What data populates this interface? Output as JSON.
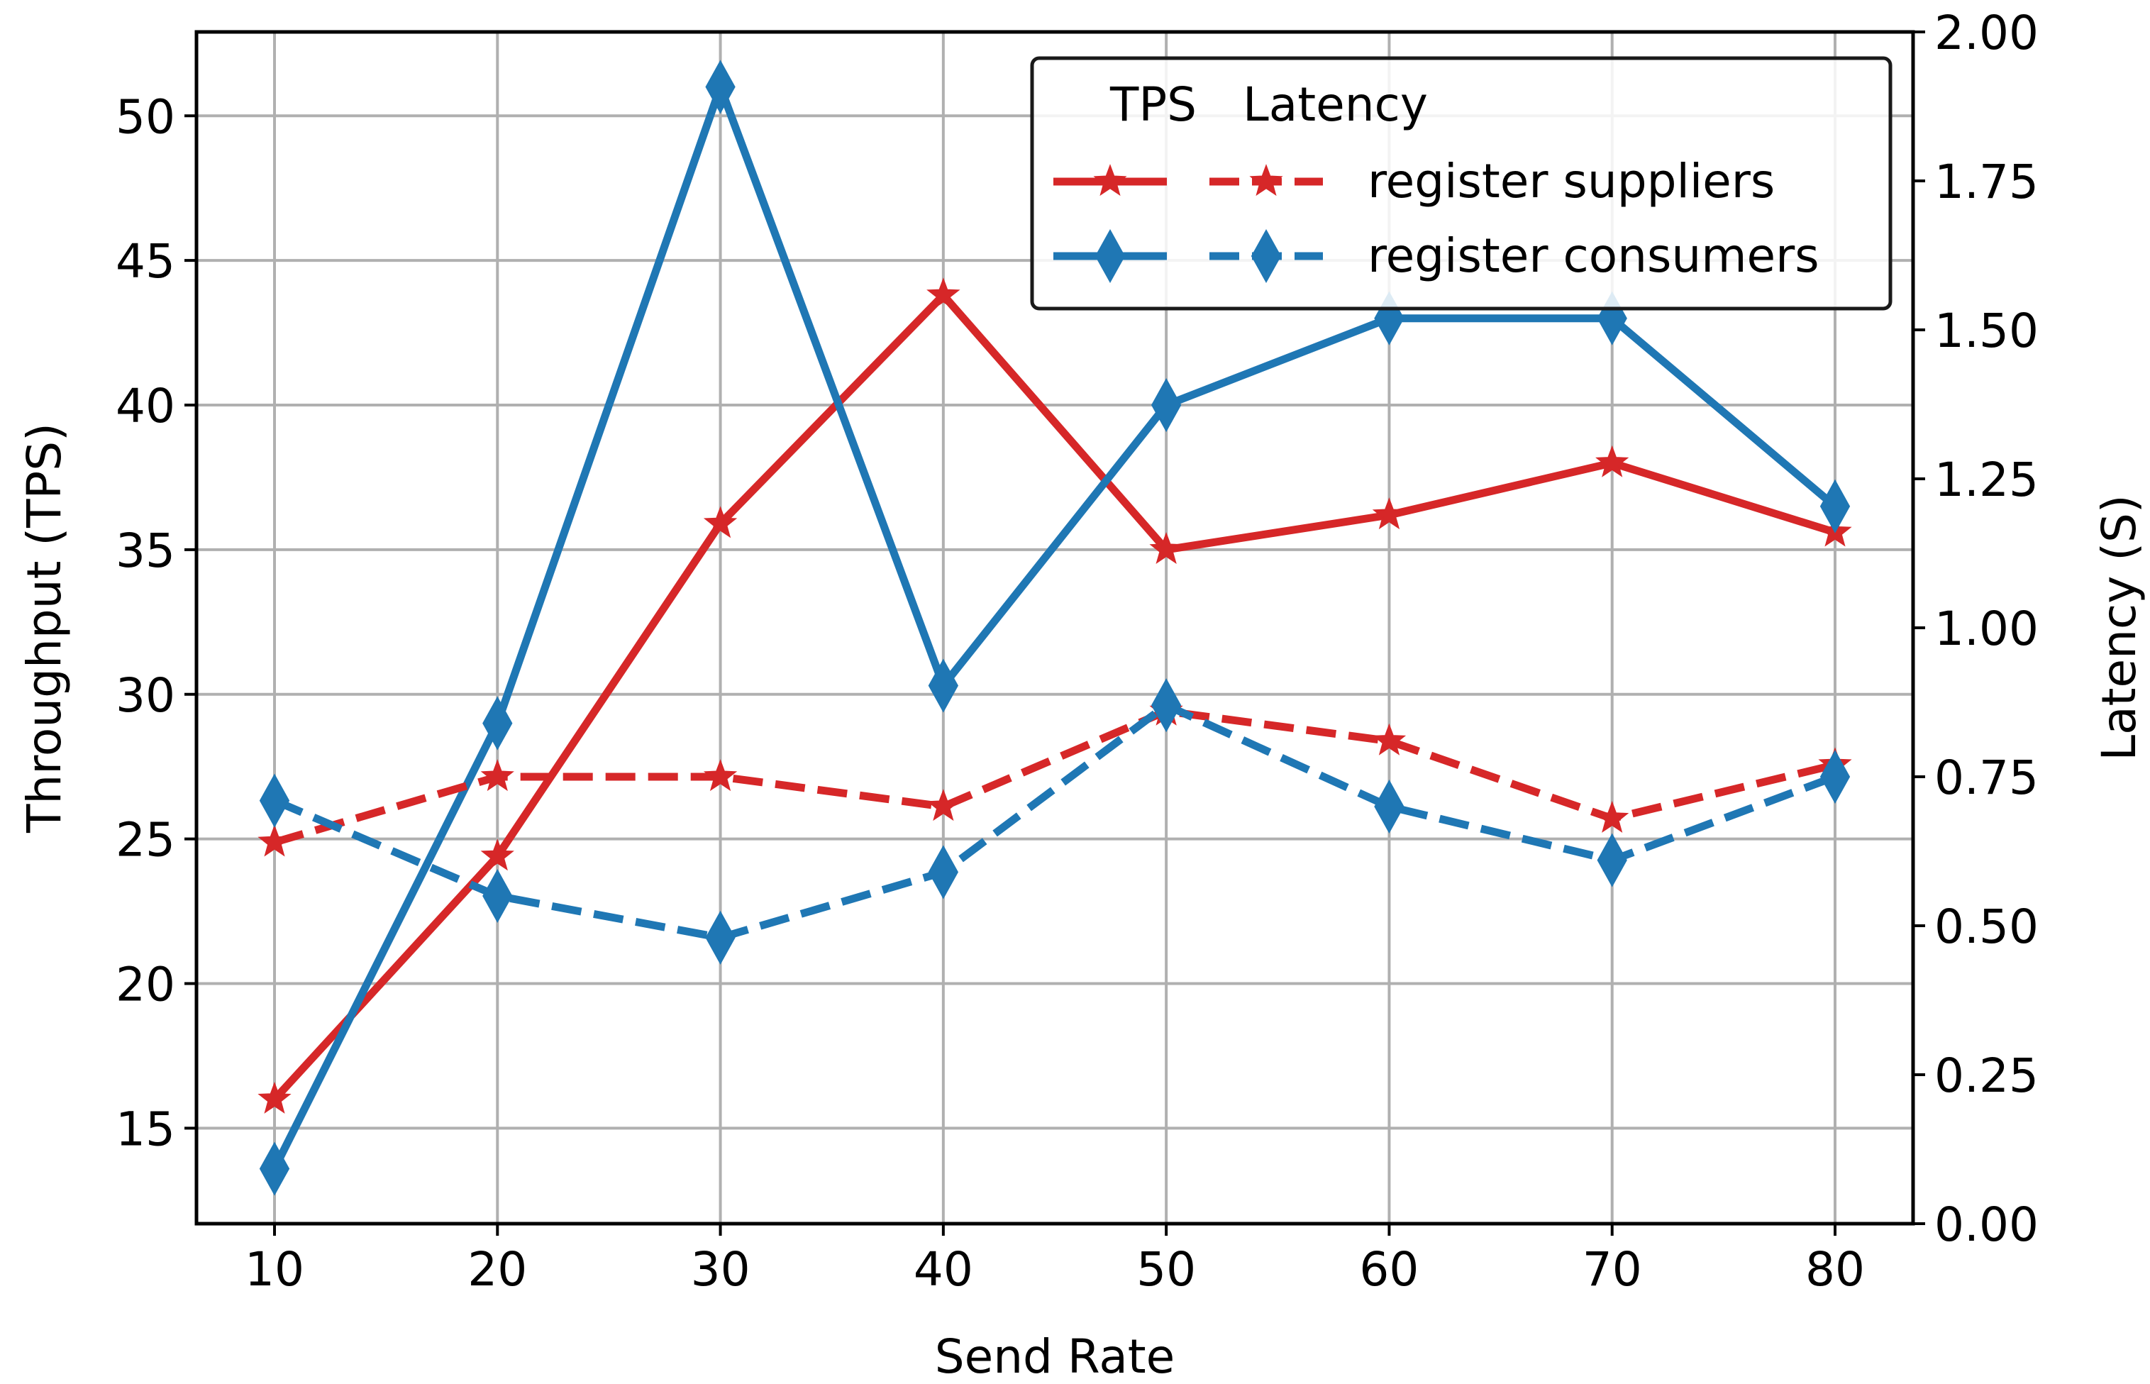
{
  "chart_data": {
    "type": "line",
    "title": "",
    "xlabel": "Send Rate",
    "ylabel_left": "Throughput (TPS)",
    "ylabel_right": "Latency (S)",
    "x": [
      10,
      20,
      30,
      40,
      50,
      60,
      70,
      80
    ],
    "x_ticks": [
      "10",
      "20",
      "30",
      "40",
      "50",
      "60",
      "70",
      "80"
    ],
    "xlim": [
      6.5,
      83.5
    ],
    "ylim_left": [
      11.7,
      52.9
    ],
    "ylim_right": [
      0.0,
      2.0
    ],
    "y_ticks_left": [
      "15",
      "20",
      "25",
      "30",
      "35",
      "40",
      "45",
      "50"
    ],
    "y_ticks_right": [
      "0.00",
      "0.25",
      "0.50",
      "0.75",
      "1.00",
      "1.25",
      "1.50",
      "1.75",
      "2.00"
    ],
    "grid": true,
    "legend": {
      "placement": "top-right",
      "header_tps": "TPS",
      "header_latency": "Latency"
    },
    "series": [
      {
        "name": "register suppliers",
        "metric": "TPS",
        "axis": "left",
        "color": "#d62728",
        "marker": "star",
        "linestyle": "solid",
        "values": [
          16.0,
          24.4,
          35.9,
          43.8,
          35.0,
          36.2,
          38.0,
          35.6
        ]
      },
      {
        "name": "register consumers",
        "metric": "TPS",
        "axis": "left",
        "color": "#1f77b4",
        "marker": "diamond",
        "linestyle": "solid",
        "values": [
          13.6,
          29.0,
          51.0,
          30.3,
          40.0,
          43.0,
          43.0,
          36.5
        ]
      },
      {
        "name": "register suppliers",
        "metric": "Latency",
        "axis": "right",
        "color": "#d62728",
        "marker": "star",
        "linestyle": "dashed",
        "values": [
          0.64,
          0.75,
          0.75,
          0.7,
          0.86,
          0.81,
          0.68,
          0.77
        ]
      },
      {
        "name": "register consumers",
        "metric": "Latency",
        "axis": "right",
        "color": "#1f77b4",
        "marker": "diamond",
        "linestyle": "dashed",
        "values": [
          0.71,
          0.55,
          0.48,
          0.59,
          0.87,
          0.7,
          0.61,
          0.75
        ]
      }
    ]
  }
}
